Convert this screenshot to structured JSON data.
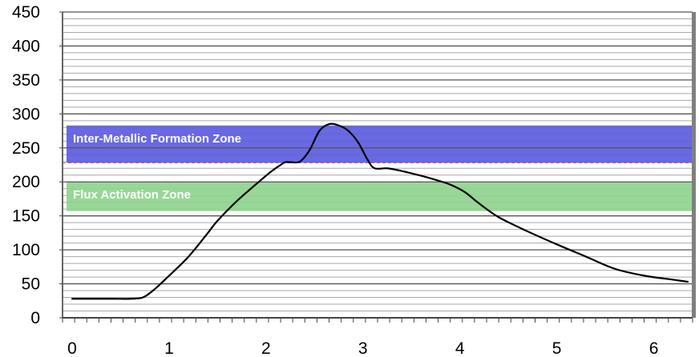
{
  "chart_data": {
    "type": "line",
    "title": "",
    "xlabel": "",
    "ylabel": "",
    "xlim": [
      0,
      6.5
    ],
    "ylim": [
      0,
      450
    ],
    "x_ticks": [
      "0",
      "1",
      "2",
      "3",
      "4",
      "5",
      "6"
    ],
    "y_ticks": [
      "0",
      "50",
      "100",
      "150",
      "200",
      "250",
      "300",
      "350",
      "400",
      "450"
    ],
    "grid": true,
    "zones": [
      {
        "label": "Inter-Metallic Formation Zone",
        "y_from": 228,
        "y_to": 283,
        "color": "#5c5ce0"
      },
      {
        "label": "Flux Activation Zone",
        "y_from": 157,
        "y_to": 200,
        "color": "#8fd48f"
      }
    ],
    "threshold_line": {
      "y": 228,
      "color": "#d05070"
    },
    "series": [
      {
        "color": "#000000",
        "points": [
          [
            0.1,
            28
          ],
          [
            0.5,
            28
          ],
          [
            0.7,
            28
          ],
          [
            0.83,
            30
          ],
          [
            0.95,
            42
          ],
          [
            1.1,
            62
          ],
          [
            1.3,
            90
          ],
          [
            1.5,
            125
          ],
          [
            1.6,
            143
          ],
          [
            1.8,
            172
          ],
          [
            2.0,
            197
          ],
          [
            2.15,
            215
          ],
          [
            2.25,
            225
          ],
          [
            2.3,
            229
          ],
          [
            2.35,
            229
          ],
          [
            2.45,
            230
          ],
          [
            2.55,
            247
          ],
          [
            2.65,
            275
          ],
          [
            2.75,
            285
          ],
          [
            2.85,
            283
          ],
          [
            2.95,
            275
          ],
          [
            3.05,
            258
          ],
          [
            3.15,
            232
          ],
          [
            3.22,
            220
          ],
          [
            3.35,
            220
          ],
          [
            3.5,
            216
          ],
          [
            3.7,
            209
          ],
          [
            3.85,
            203
          ],
          [
            4.0,
            196
          ],
          [
            4.15,
            185
          ],
          [
            4.3,
            168
          ],
          [
            4.5,
            148
          ],
          [
            4.8,
            127
          ],
          [
            5.1,
            108
          ],
          [
            5.4,
            90
          ],
          [
            5.7,
            72
          ],
          [
            6.0,
            62
          ],
          [
            6.3,
            56
          ],
          [
            6.45,
            53
          ]
        ]
      }
    ]
  }
}
